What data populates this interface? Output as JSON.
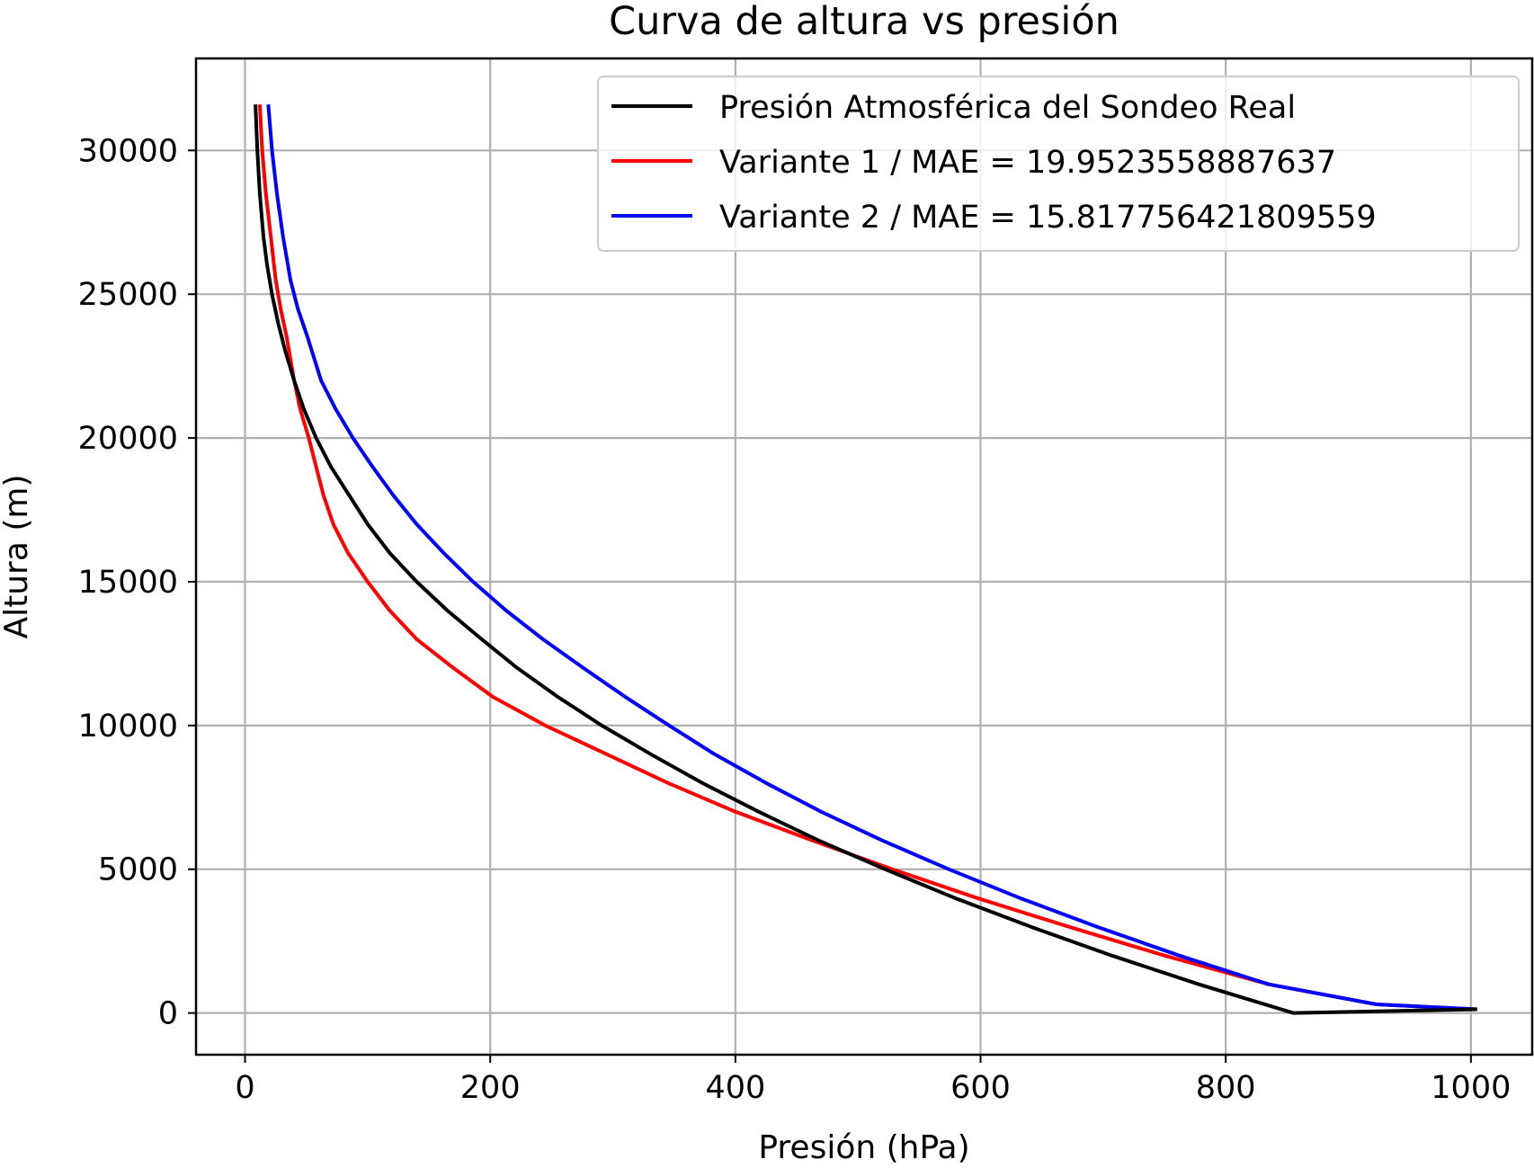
{
  "chart_data": {
    "type": "line",
    "title": "Curva de altura vs presión",
    "xlabel": "Presión (hPa)",
    "ylabel": "Altura (m)",
    "xlim": [
      -40,
      1050
    ],
    "ylim": [
      -1450,
      33200
    ],
    "xticks": [
      0,
      200,
      400,
      600,
      800,
      1000
    ],
    "yticks": [
      0,
      5000,
      10000,
      15000,
      20000,
      25000,
      30000
    ],
    "grid": true,
    "legend_position": "top-right",
    "series": [
      {
        "name": "Presión Atmosférica del Sondeo Real",
        "color": "#000000",
        "points": [
          [
            8.5,
            31600
          ],
          [
            10,
            30000
          ],
          [
            12,
            28500
          ],
          [
            15,
            27000
          ],
          [
            18,
            26000
          ],
          [
            22,
            25000
          ],
          [
            27,
            24000
          ],
          [
            33,
            23000
          ],
          [
            40,
            22000
          ],
          [
            48,
            21000
          ],
          [
            58,
            20000
          ],
          [
            70,
            19000
          ],
          [
            85,
            18000
          ],
          [
            100,
            17000
          ],
          [
            118,
            16000
          ],
          [
            140,
            15000
          ],
          [
            165,
            14000
          ],
          [
            193,
            13000
          ],
          [
            222,
            12000
          ],
          [
            255,
            11000
          ],
          [
            291,
            10000
          ],
          [
            331,
            9000
          ],
          [
            373,
            8000
          ],
          [
            419,
            7000
          ],
          [
            468,
            6000
          ],
          [
            522,
            5000
          ],
          [
            579,
            4000
          ],
          [
            641,
            3000
          ],
          [
            707,
            2000
          ],
          [
            778,
            1000
          ],
          [
            855,
            0
          ],
          [
            1005,
            130
          ]
        ]
      },
      {
        "name": "Variante 1 / MAE = 19.9523558887637",
        "color": "#ff0000",
        "points": [
          [
            12,
            31600
          ],
          [
            14,
            30000
          ],
          [
            17,
            28500
          ],
          [
            21,
            27000
          ],
          [
            25,
            25500
          ],
          [
            29,
            24500
          ],
          [
            34,
            23500
          ],
          [
            40,
            22000
          ],
          [
            45,
            21000
          ],
          [
            52,
            20000
          ],
          [
            58,
            19000
          ],
          [
            64,
            18000
          ],
          [
            72,
            17000
          ],
          [
            84,
            16000
          ],
          [
            100,
            15000
          ],
          [
            118,
            14000
          ],
          [
            140,
            13000
          ],
          [
            170,
            12000
          ],
          [
            202,
            11000
          ],
          [
            245,
            10000
          ],
          [
            295,
            9000
          ],
          [
            345,
            8000
          ],
          [
            400,
            7000
          ],
          [
            463,
            6000
          ],
          [
            528,
            5000
          ],
          [
            597,
            4000
          ],
          [
            672,
            3000
          ],
          [
            750,
            2000
          ],
          [
            835,
            1000
          ],
          [
            923,
            300
          ],
          [
            1005,
            130
          ]
        ]
      },
      {
        "name": "Variante 2 / MAE = 15.817756421809559",
        "color": "#0000ff",
        "points": [
          [
            19,
            31600
          ],
          [
            22,
            30000
          ],
          [
            26,
            28500
          ],
          [
            31,
            27000
          ],
          [
            37,
            25500
          ],
          [
            43,
            24500
          ],
          [
            51,
            23500
          ],
          [
            62,
            22000
          ],
          [
            74,
            21000
          ],
          [
            88,
            20000
          ],
          [
            104,
            19000
          ],
          [
            121,
            18000
          ],
          [
            140,
            17000
          ],
          [
            162,
            16000
          ],
          [
            186,
            15000
          ],
          [
            213,
            14000
          ],
          [
            243,
            13000
          ],
          [
            276,
            12000
          ],
          [
            310,
            11000
          ],
          [
            346,
            10000
          ],
          [
            383,
            9000
          ],
          [
            425,
            8000
          ],
          [
            470,
            7000
          ],
          [
            520,
            6000
          ],
          [
            574,
            5000
          ],
          [
            632,
            4000
          ],
          [
            695,
            3000
          ],
          [
            762,
            2000
          ],
          [
            835,
            1000
          ],
          [
            923,
            300
          ],
          [
            1005,
            130
          ]
        ]
      }
    ]
  }
}
